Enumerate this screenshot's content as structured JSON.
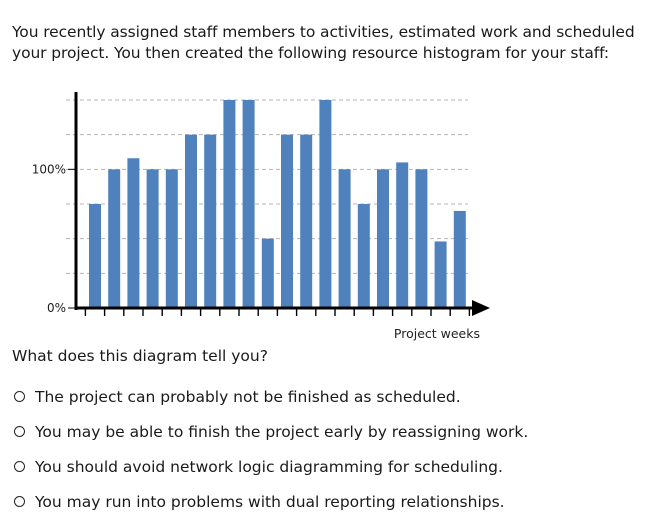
{
  "intro": "You recently assigned staff members to activities, estimated work and scheduled your project. You then created the following resource histogram for your staff:",
  "question": "What does this diagram tell you?",
  "options": [
    "The project can probably not be finished as scheduled.",
    "You may be able to finish the project early by reassigning work.",
    "You should avoid network logic diagramming for scheduling.",
    "You may run into problems with dual reporting relationships."
  ],
  "chart_data": {
    "type": "bar",
    "title": "",
    "xlabel": "Project weeks",
    "ylabel": "",
    "ylim": [
      0,
      150
    ],
    "yticks": [
      {
        "value": 0,
        "label": "0%"
      },
      {
        "value": 100,
        "label": "100%"
      }
    ],
    "grid": "dashed horizontal",
    "bar_color": "#4f81bd",
    "values": [
      75,
      100,
      108,
      100,
      100,
      125,
      125,
      150,
      150,
      50,
      125,
      125,
      150,
      100,
      75,
      100,
      105,
      100,
      48,
      70
    ]
  }
}
